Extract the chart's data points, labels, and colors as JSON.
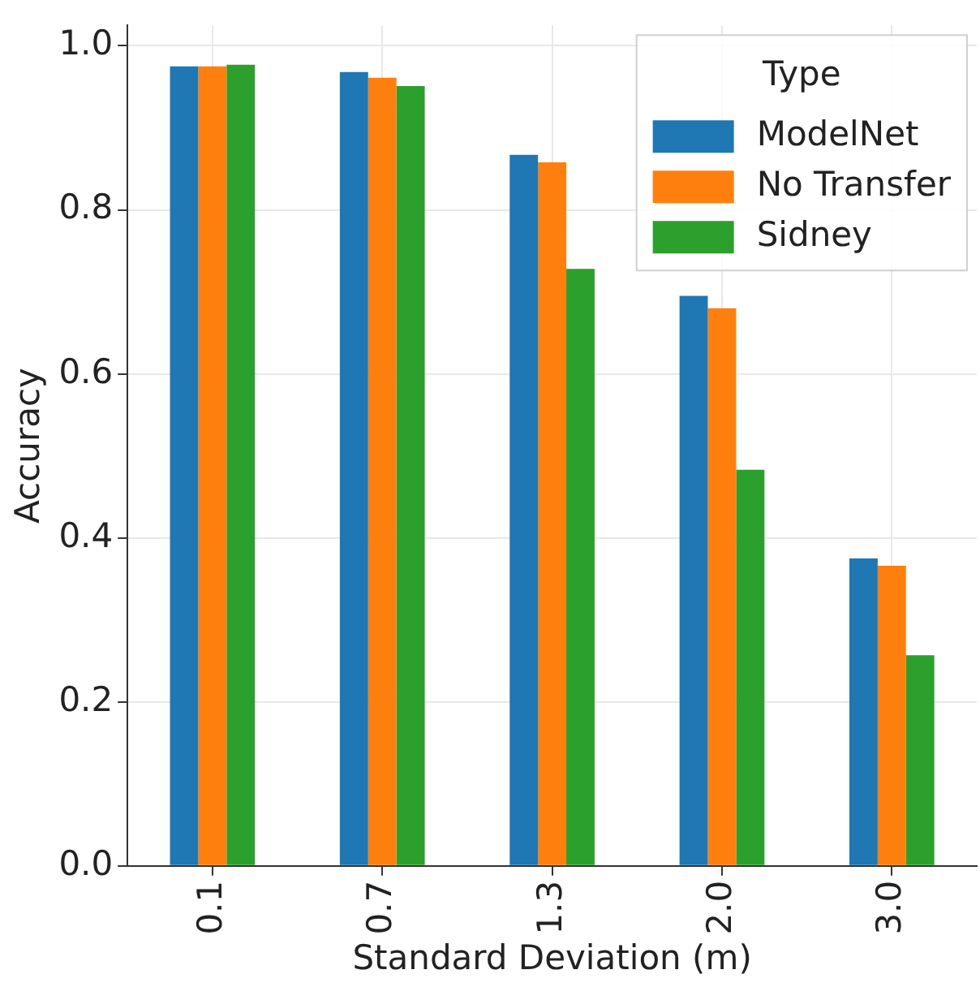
{
  "chart_data": {
    "type": "bar",
    "xlabel": "Standard Deviation (m)",
    "ylabel": "Accuracy",
    "legend_title": "Type",
    "categories": [
      "0.1",
      "0.7",
      "1.3",
      "2.0",
      "3.0"
    ],
    "series": [
      {
        "name": "ModelNet",
        "color": "#1f77b4",
        "values": [
          0.975,
          0.968,
          0.867,
          0.695,
          0.375
        ]
      },
      {
        "name": "No Transfer",
        "color": "#ff7f0e",
        "values": [
          0.975,
          0.961,
          0.858,
          0.68,
          0.366
        ]
      },
      {
        "name": "Sidney",
        "color": "#2ca02c",
        "values": [
          0.977,
          0.951,
          0.728,
          0.483,
          0.257
        ]
      }
    ],
    "ylim": [
      0,
      1.025
    ],
    "yticks": [
      {
        "value": 0,
        "label": "0.0"
      },
      0.2,
      0.4,
      0.6,
      0.8,
      {
        "value": 1,
        "label": "1.0"
      }
    ],
    "grid": true,
    "legend": "top right"
  }
}
